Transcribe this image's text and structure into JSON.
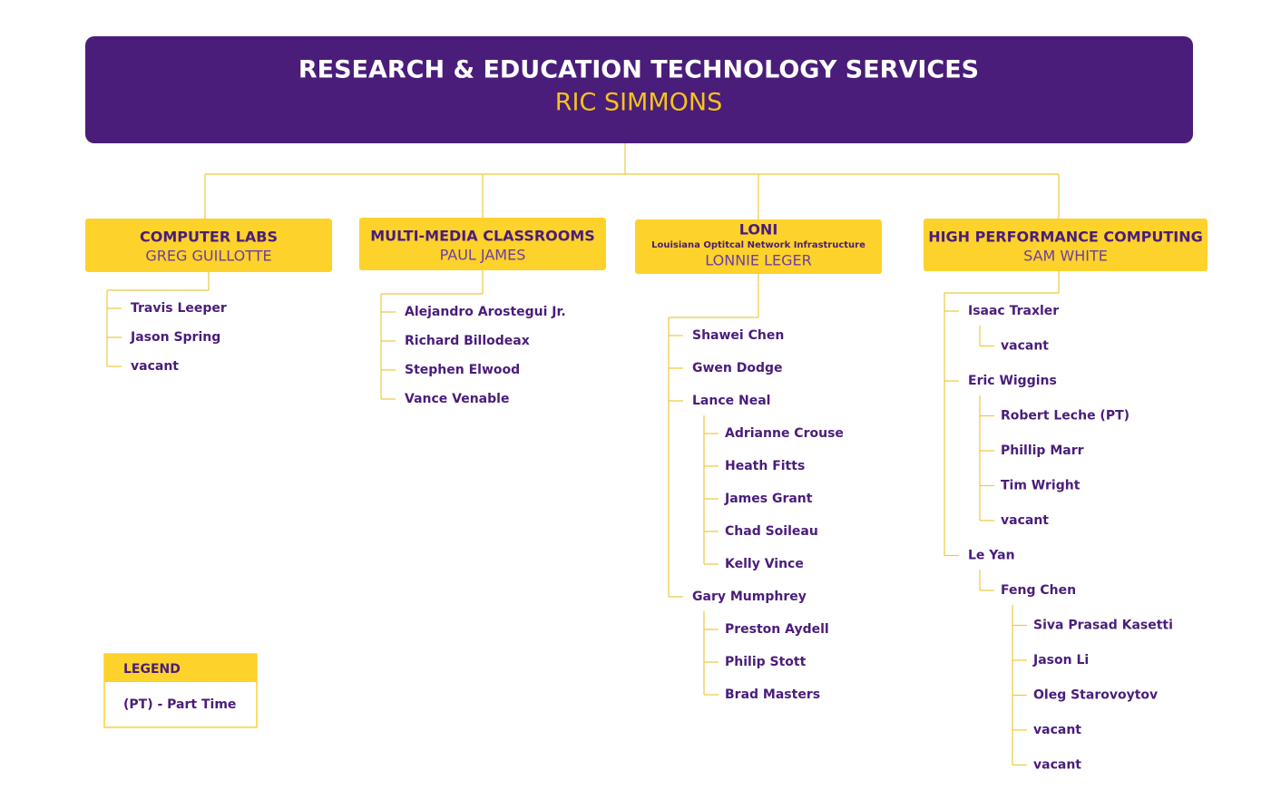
{
  "header": {
    "title": "RESEARCH & EDUCATION TECHNOLOGY SERVICES",
    "name": "RIC SIMMONS"
  },
  "departments": [
    {
      "title": "COMPUTER LABS",
      "head": "GREG GUILLOTTE",
      "members": [
        {
          "name": "Travis Leeper"
        },
        {
          "name": "Jason Spring"
        },
        {
          "name": "vacant"
        }
      ]
    },
    {
      "title": "MULTI-MEDIA CLASSROOMS",
      "head": "PAUL JAMES",
      "members": [
        {
          "name": "Alejandro Arostegui Jr."
        },
        {
          "name": "Richard Billodeax"
        },
        {
          "name": "Stephen Elwood"
        },
        {
          "name": "Vance Venable"
        }
      ]
    },
    {
      "title": "LONI",
      "subtitle": "Louisiana Optitcal Network Infrastructure",
      "head": "LONNIE LEGER",
      "members": [
        {
          "name": "Shawei Chen"
        },
        {
          "name": "Gwen Dodge"
        },
        {
          "name": "Lance Neal",
          "reports": [
            {
              "name": "Adrianne Crouse"
            },
            {
              "name": "Heath Fitts"
            },
            {
              "name": "James Grant"
            },
            {
              "name": "Chad Soileau"
            },
            {
              "name": "Kelly Vince"
            }
          ]
        },
        {
          "name": "Gary Mumphrey",
          "reports": [
            {
              "name": "Preston Aydell"
            },
            {
              "name": "Philip Stott"
            },
            {
              "name": "Brad Masters"
            }
          ]
        }
      ]
    },
    {
      "title": "HIGH PERFORMANCE COMPUTING",
      "head": "SAM WHITE",
      "members": [
        {
          "name": "Isaac Traxler",
          "reports": [
            {
              "name": "vacant"
            }
          ]
        },
        {
          "name": "Eric Wiggins",
          "reports": [
            {
              "name": "Robert Leche (PT)"
            },
            {
              "name": "Phillip Marr"
            },
            {
              "name": "Tim Wright"
            },
            {
              "name": "vacant"
            }
          ]
        },
        {
          "name": "Le Yan",
          "reports": [
            {
              "name": "Feng Chen",
              "reports": [
                {
                  "name": "Siva Prasad Kasetti"
                },
                {
                  "name": "Jason Li"
                },
                {
                  "name": "Oleg Starovoytov"
                },
                {
                  "name": "vacant"
                },
                {
                  "name": "vacant"
                }
              ]
            }
          ]
        }
      ]
    }
  ],
  "legend": {
    "title": "LEGEND",
    "items": [
      "(PT) - Part Time"
    ]
  }
}
